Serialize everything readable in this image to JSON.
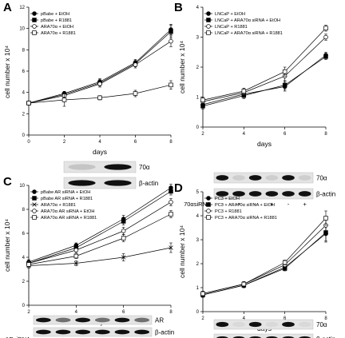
{
  "chart_data": [
    {
      "panel": "A",
      "type": "line",
      "xlabel": "days",
      "ylabel": "cell number x 10⁴",
      "xlim": [
        0,
        8
      ],
      "ylim": [
        0,
        12
      ],
      "xticks": [
        0,
        2,
        4,
        6,
        8
      ],
      "yticks": [
        0,
        2,
        4,
        6,
        8,
        10,
        12
      ],
      "x": [
        0,
        2,
        4,
        6,
        8
      ],
      "series": [
        {
          "name": "pBabe + EtOH",
          "marker": "circle-filled",
          "values": [
            3.0,
            3.9,
            5.0,
            6.8,
            9.9
          ],
          "err": [
            0.15,
            0.2,
            0.3,
            0.3,
            0.5
          ]
        },
        {
          "name": "pBabe + R1881",
          "marker": "square-filled",
          "values": [
            3.0,
            3.8,
            4.9,
            6.7,
            9.7
          ],
          "err": [
            0.15,
            0.2,
            0.3,
            0.3,
            0.6
          ]
        },
        {
          "name": "ARA70α + EtOH",
          "marker": "circle-open",
          "values": [
            3.0,
            3.7,
            4.8,
            6.6,
            8.8
          ],
          "err": [
            0.15,
            0.2,
            0.3,
            0.3,
            0.5
          ]
        },
        {
          "name": "ARA70α + R1881",
          "marker": "square-open",
          "values": [
            3.0,
            3.3,
            3.5,
            3.9,
            4.7
          ],
          "err": [
            0.15,
            0.6,
            0.2,
            0.3,
            0.4
          ]
        }
      ],
      "blot": {
        "rows": [
          "70α",
          "β-actin"
        ],
        "lanes": 2,
        "bands": [
          [
            0.15,
            1.0
          ],
          [
            1.0,
            1.0
          ]
        ],
        "lane_labels": []
      }
    },
    {
      "panel": "B",
      "type": "line",
      "xlabel": "days",
      "ylabel": "cell number x 10⁴",
      "xlim": [
        2,
        8
      ],
      "ylim": [
        0,
        4
      ],
      "xticks": [
        2,
        4,
        6,
        8
      ],
      "yticks": [
        0,
        1,
        2,
        3,
        4
      ],
      "x": [
        2,
        4,
        6,
        8
      ],
      "series": [
        {
          "name": "LNCaP + EtOH",
          "marker": "circle-filled",
          "values": [
            0.75,
            1.1,
            1.35,
            2.4
          ],
          "err": [
            0.1,
            0.1,
            0.15,
            0.1
          ]
        },
        {
          "name": "LNCaP + ARA70α siRNA + EtOH",
          "marker": "square-filled",
          "values": [
            0.7,
            1.05,
            1.4,
            2.35
          ],
          "err": [
            0.1,
            0.1,
            0.15,
            0.1
          ]
        },
        {
          "name": "LNCaP + R1881",
          "marker": "circle-open",
          "values": [
            0.85,
            1.15,
            1.7,
            3.0
          ],
          "err": [
            0.1,
            0.1,
            0.15,
            0.1
          ]
        },
        {
          "name": "LNCaP + ARA70α siRNA + R1881",
          "marker": "square-open",
          "values": [
            0.9,
            1.2,
            1.85,
            3.3
          ],
          "err": [
            0.1,
            0.1,
            0.15,
            0.1
          ]
        }
      ],
      "blot": {
        "rows": [
          "70α",
          "β-actin"
        ],
        "lanes": 6,
        "bands": [
          [
            1,
            0.1,
            1,
            0.1,
            1,
            0.1
          ],
          [
            1,
            1,
            1,
            1,
            1,
            1
          ]
        ],
        "lane_labels": [
          "-",
          "+",
          "-",
          "+",
          "-",
          "+"
        ],
        "lane_title": "70αsiRNA"
      }
    },
    {
      "panel": "C",
      "type": "line",
      "xlabel": "days",
      "ylabel": "cell number x 10⁴",
      "xlim": [
        2,
        8
      ],
      "ylim": [
        0,
        10
      ],
      "xticks": [
        2,
        4,
        6,
        8
      ],
      "yticks": [
        0,
        2,
        4,
        6,
        8,
        10
      ],
      "x": [
        2,
        4,
        6,
        8
      ],
      "series": [
        {
          "name": "pBabe AR siRNA + EtOH",
          "marker": "circle-filled",
          "values": [
            3.6,
            5.0,
            7.2,
            9.8
          ],
          "err": [
            0.2,
            0.2,
            0.3,
            0.3
          ]
        },
        {
          "name": "pBabe AR siRNA + R1881",
          "marker": "square-filled",
          "values": [
            3.5,
            4.8,
            7.0,
            9.5
          ],
          "err": [
            0.2,
            0.2,
            0.3,
            0.3
          ]
        },
        {
          "name": "ARA70α + R1881",
          "marker": "x",
          "values": [
            3.3,
            3.5,
            4.0,
            4.8
          ],
          "err": [
            0.2,
            0.2,
            0.3,
            0.4
          ]
        },
        {
          "name": "ARA70α AR siRNA + EtOH",
          "marker": "circle-open",
          "values": [
            3.5,
            4.6,
            6.2,
            8.6
          ],
          "err": [
            0.2,
            0.2,
            0.3,
            0.3
          ]
        },
        {
          "name": "ARA70α AR siRNA + R1881",
          "marker": "square-open",
          "values": [
            3.4,
            4.1,
            5.6,
            7.6
          ],
          "err": [
            0.2,
            0.2,
            0.3,
            0.3
          ]
        }
      ],
      "blot": {
        "rows": [
          "AR",
          "β-actin"
        ],
        "lanes": 6,
        "bands": [
          [
            1,
            0.55,
            1,
            0.55,
            1,
            0.55
          ],
          [
            1,
            1,
            1,
            1,
            1,
            1
          ]
        ],
        "lane_labels": [
          "-",
          "+",
          "-",
          "+",
          "-",
          "+"
        ],
        "lane_title": "ARsiRNA"
      }
    },
    {
      "panel": "D",
      "type": "line",
      "xlabel": "days",
      "ylabel": "cell number x 10⁴",
      "xlim": [
        2,
        8
      ],
      "ylim": [
        0,
        5
      ],
      "xticks": [
        2,
        4,
        6,
        8
      ],
      "yticks": [
        0,
        1,
        2,
        3,
        4,
        5
      ],
      "x": [
        2,
        4,
        6,
        8
      ],
      "series": [
        {
          "name": "PC3 + EtOH",
          "marker": "circle-filled",
          "values": [
            0.7,
            1.1,
            1.85,
            3.25
          ],
          "err": [
            0.1,
            0.1,
            0.1,
            0.35
          ]
        },
        {
          "name": "PC3 + ARA70α siRNA + EtOH",
          "marker": "square-filled",
          "values": [
            0.7,
            1.1,
            1.8,
            3.3
          ],
          "err": [
            0.1,
            0.1,
            0.1,
            0.35
          ]
        },
        {
          "name": "PC3 + R1881",
          "marker": "circle-open",
          "values": [
            0.75,
            1.15,
            1.95,
            3.6
          ],
          "err": [
            0.1,
            0.1,
            0.1,
            0.3
          ]
        },
        {
          "name": "PC3 + ARA70α siRNA + R1881",
          "marker": "square-open",
          "values": [
            0.75,
            1.15,
            2.05,
            3.9
          ],
          "err": [
            0.1,
            0.1,
            0.1,
            0.3
          ]
        }
      ],
      "blot": {
        "rows": [
          "70α",
          "β-actin"
        ],
        "lanes": 6,
        "bands": [
          [
            1,
            0.05,
            1,
            0.05,
            1,
            0.05
          ],
          [
            1,
            1,
            1,
            1,
            1,
            1
          ]
        ],
        "lane_labels": [
          "-",
          "+",
          "-",
          "+",
          "-",
          "+"
        ],
        "lane_title": "70αsiRNA"
      }
    }
  ]
}
